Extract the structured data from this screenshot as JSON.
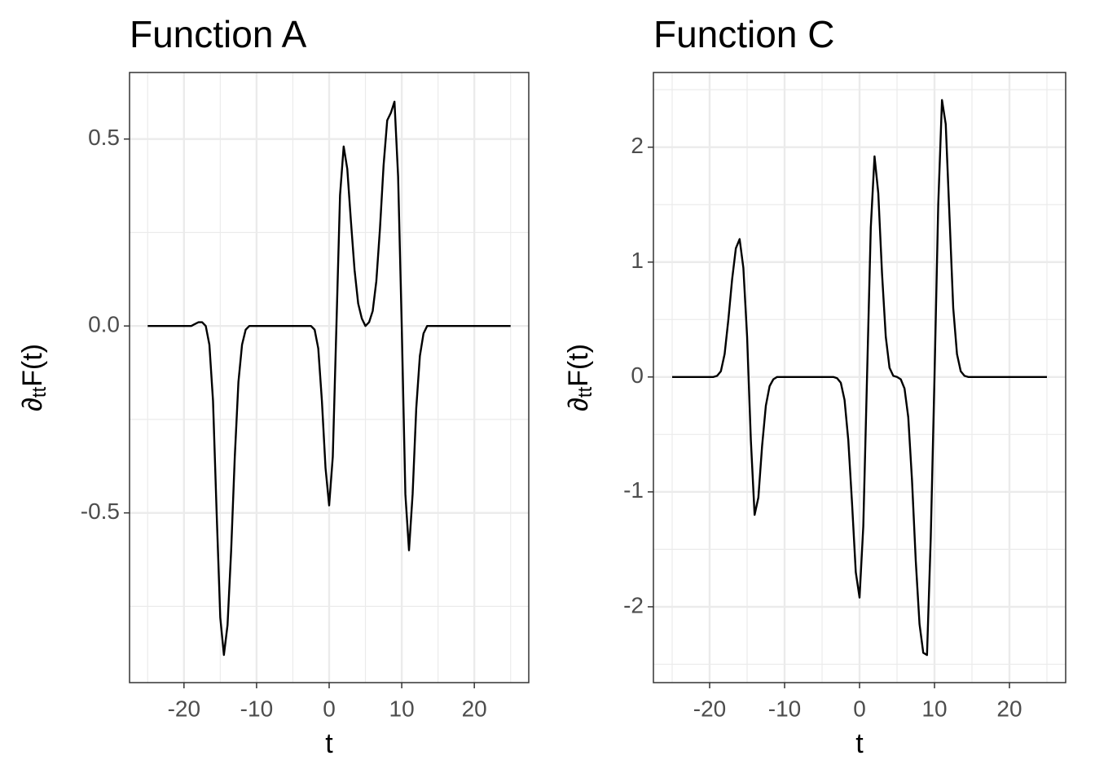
{
  "chart_data": [
    {
      "type": "line",
      "title": "Function A",
      "x_label": "t",
      "y_label_parts": [
        "∂",
        "tt",
        "F(t)"
      ],
      "xlim": [
        -27.5,
        27.5
      ],
      "ylim": [
        -0.954,
        0.678
      ],
      "xticks": [
        -20,
        -10,
        0,
        10,
        20
      ],
      "yticks": [
        {
          "value": -0.5,
          "label": "-0.5"
        },
        {
          "value": 0,
          "label": "0.0"
        },
        {
          "value": 0.5,
          "label": "0.5"
        }
      ],
      "xminor": [
        -25,
        -15,
        -5,
        5,
        15,
        25
      ],
      "yminor": [
        -0.75,
        -0.25,
        0.25
      ],
      "grid": true,
      "x": [
        -25,
        -24.5,
        -24,
        -23.5,
        -23,
        -22.5,
        -22,
        -21.5,
        -21,
        -20.5,
        -20,
        -19.5,
        -19,
        -18.5,
        -18,
        -17.5,
        -17,
        -16.5,
        -16,
        -15.5,
        -15,
        -14.5,
        -14,
        -13.5,
        -13,
        -12.5,
        -12,
        -11.5,
        -11,
        -10.5,
        -10,
        -9.5,
        -9,
        -8.5,
        -8,
        -7.5,
        -7,
        -6.5,
        -6,
        -5.5,
        -5,
        -4.5,
        -4,
        -3.5,
        -3,
        -2.5,
        -2,
        -1.5,
        -1,
        -0.5,
        0,
        0.5,
        1,
        1.5,
        2,
        2.5,
        3,
        3.5,
        4,
        4.5,
        5,
        5.5,
        6,
        6.5,
        7,
        7.5,
        8,
        8.5,
        9,
        9.5,
        10,
        10.5,
        11,
        11.5,
        12,
        12.5,
        13,
        13.5,
        14,
        14.5,
        15,
        15.5,
        16,
        16.5,
        17,
        17.5,
        18,
        18.5,
        19,
        19.5,
        20,
        20.5,
        21,
        21.5,
        22,
        22.5,
        23,
        23.5,
        24,
        24.5,
        25
      ],
      "series": [
        {
          "color": "#000000",
          "values": [
            0,
            0,
            0,
            0,
            0,
            0,
            0,
            0,
            0,
            0,
            0,
            0,
            0,
            0.005,
            0.01,
            0.01,
            0,
            -0.05,
            -0.2,
            -0.5,
            -0.78,
            -0.88,
            -0.8,
            -0.6,
            -0.35,
            -0.15,
            -0.05,
            -0.01,
            0,
            0,
            0,
            0,
            0,
            0,
            0,
            0,
            0,
            0,
            0,
            0,
            0,
            0,
            0,
            0,
            0,
            0,
            -0.01,
            -0.06,
            -0.2,
            -0.38,
            -0.48,
            -0.35,
            0,
            0.35,
            0.48,
            0.42,
            0.28,
            0.15,
            0.06,
            0.02,
            0,
            0.01,
            0.04,
            0.12,
            0.26,
            0.43,
            0.55,
            0.57,
            0.6,
            0.4,
            0,
            -0.45,
            -0.6,
            -0.45,
            -0.22,
            -0.08,
            -0.02,
            0,
            0,
            0,
            0,
            0,
            0,
            0,
            0,
            0,
            0,
            0,
            0,
            0,
            0,
            0,
            0,
            0,
            0,
            0,
            0,
            0,
            0,
            0,
            0
          ]
        }
      ]
    },
    {
      "type": "line",
      "title": "Function C",
      "x_label": "t",
      "y_label_parts": [
        "∂",
        "tt",
        "F(t)"
      ],
      "xlim": [
        -27.5,
        27.5
      ],
      "ylim": [
        -2.66,
        2.65
      ],
      "xticks": [
        -20,
        -10,
        0,
        10,
        20
      ],
      "yticks": [
        -2,
        -1,
        0,
        1,
        2
      ],
      "xminor": [
        -25,
        -15,
        -5,
        5,
        15,
        25
      ],
      "yminor": [
        -2.5,
        -1.5,
        -0.5,
        0.5,
        1.5,
        2.5
      ],
      "grid": true,
      "x": [
        -25,
        -24.5,
        -24,
        -23.5,
        -23,
        -22.5,
        -22,
        -21.5,
        -21,
        -20.5,
        -20,
        -19.5,
        -19,
        -18.5,
        -18,
        -17.5,
        -17,
        -16.5,
        -16,
        -15.5,
        -15,
        -14.5,
        -14,
        -13.5,
        -13,
        -12.5,
        -12,
        -11.5,
        -11,
        -10.5,
        -10,
        -9.5,
        -9,
        -8.5,
        -8,
        -7.5,
        -7,
        -6.5,
        -6,
        -5.5,
        -5,
        -4.5,
        -4,
        -3.5,
        -3,
        -2.5,
        -2,
        -1.5,
        -1,
        -0.5,
        0,
        0.5,
        1,
        1.5,
        2,
        2.5,
        3,
        3.5,
        4,
        4.5,
        5,
        5.5,
        6,
        6.5,
        7,
        7.5,
        8,
        8.5,
        9,
        9.5,
        10,
        10.5,
        11,
        11.5,
        12,
        12.5,
        13,
        13.5,
        14,
        14.5,
        15,
        15.5,
        16,
        16.5,
        17,
        17.5,
        18,
        18.5,
        19,
        19.5,
        20,
        20.5,
        21,
        21.5,
        22,
        22.5,
        23,
        23.5,
        24,
        24.5,
        25
      ],
      "series": [
        {
          "color": "#000000",
          "values": [
            0,
            0,
            0,
            0,
            0,
            0,
            0,
            0,
            0,
            0,
            0,
            0,
            0.01,
            0.05,
            0.2,
            0.5,
            0.85,
            1.12,
            1.2,
            0.95,
            0.35,
            -0.55,
            -1.2,
            -1.05,
            -0.6,
            -0.25,
            -0.08,
            -0.02,
            0,
            0,
            0,
            0,
            0,
            0,
            0,
            0,
            0,
            0,
            0,
            0,
            0,
            0,
            0,
            0,
            -0.01,
            -0.05,
            -0.2,
            -0.55,
            -1.1,
            -1.7,
            -1.92,
            -1.3,
            0,
            1.3,
            1.92,
            1.6,
            0.9,
            0.35,
            0.08,
            0.01,
            0,
            -0.02,
            -0.1,
            -0.35,
            -0.9,
            -1.6,
            -2.15,
            -2.4,
            -2.42,
            -1.4,
            0,
            1.5,
            2.41,
            2.2,
            1.4,
            0.6,
            0.2,
            0.05,
            0.01,
            0,
            0,
            0,
            0,
            0,
            0,
            0,
            0,
            0,
            0,
            0,
            0,
            0,
            0,
            0,
            0,
            0,
            0,
            0,
            0,
            0,
            0
          ]
        }
      ]
    }
  ]
}
